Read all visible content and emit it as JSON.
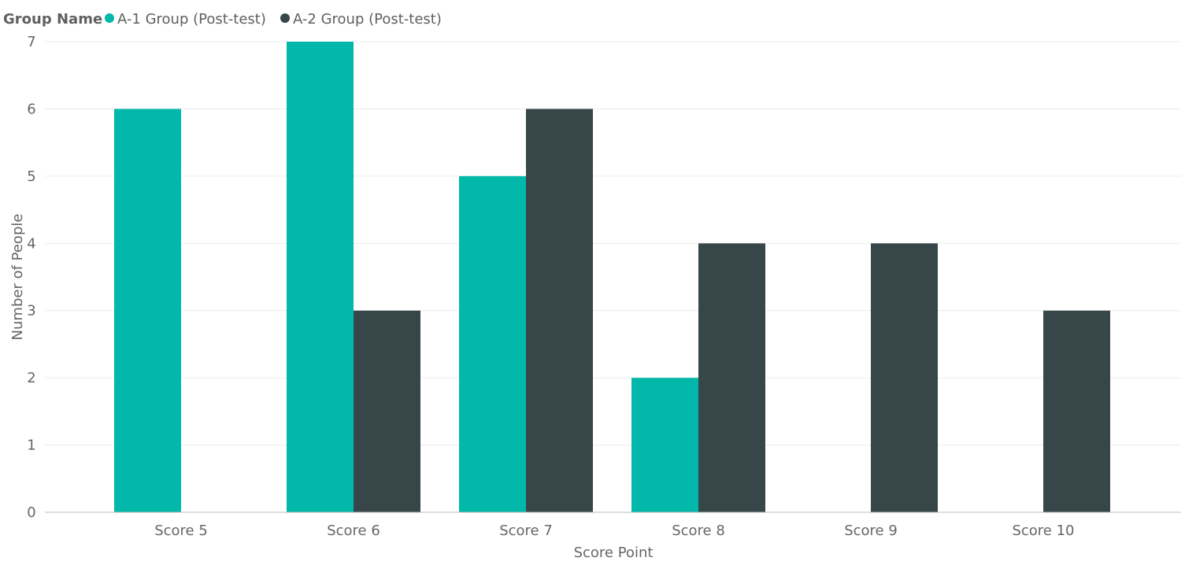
{
  "chart_data": {
    "type": "bar",
    "legend_title": "Group Name",
    "legend_placement": "top-left",
    "categories": [
      "Score 5",
      "Score 6",
      "Score 7",
      "Score 8",
      "Score 9",
      "Score 10"
    ],
    "series": [
      {
        "name": "A-1 Group (Post-test)",
        "color": "#01B8AA",
        "values": [
          6,
          7,
          5,
          2,
          0,
          0
        ]
      },
      {
        "name": "A-2 Group (Post-test)",
        "color": "#374649",
        "values": [
          0,
          3,
          6,
          4,
          4,
          3
        ]
      }
    ],
    "xlabel": "Score Point",
    "ylabel": "Number of People",
    "ylim": [
      0,
      7
    ],
    "yticks": [
      0,
      1,
      2,
      3,
      4,
      5,
      6,
      7
    ],
    "grid": true
  }
}
